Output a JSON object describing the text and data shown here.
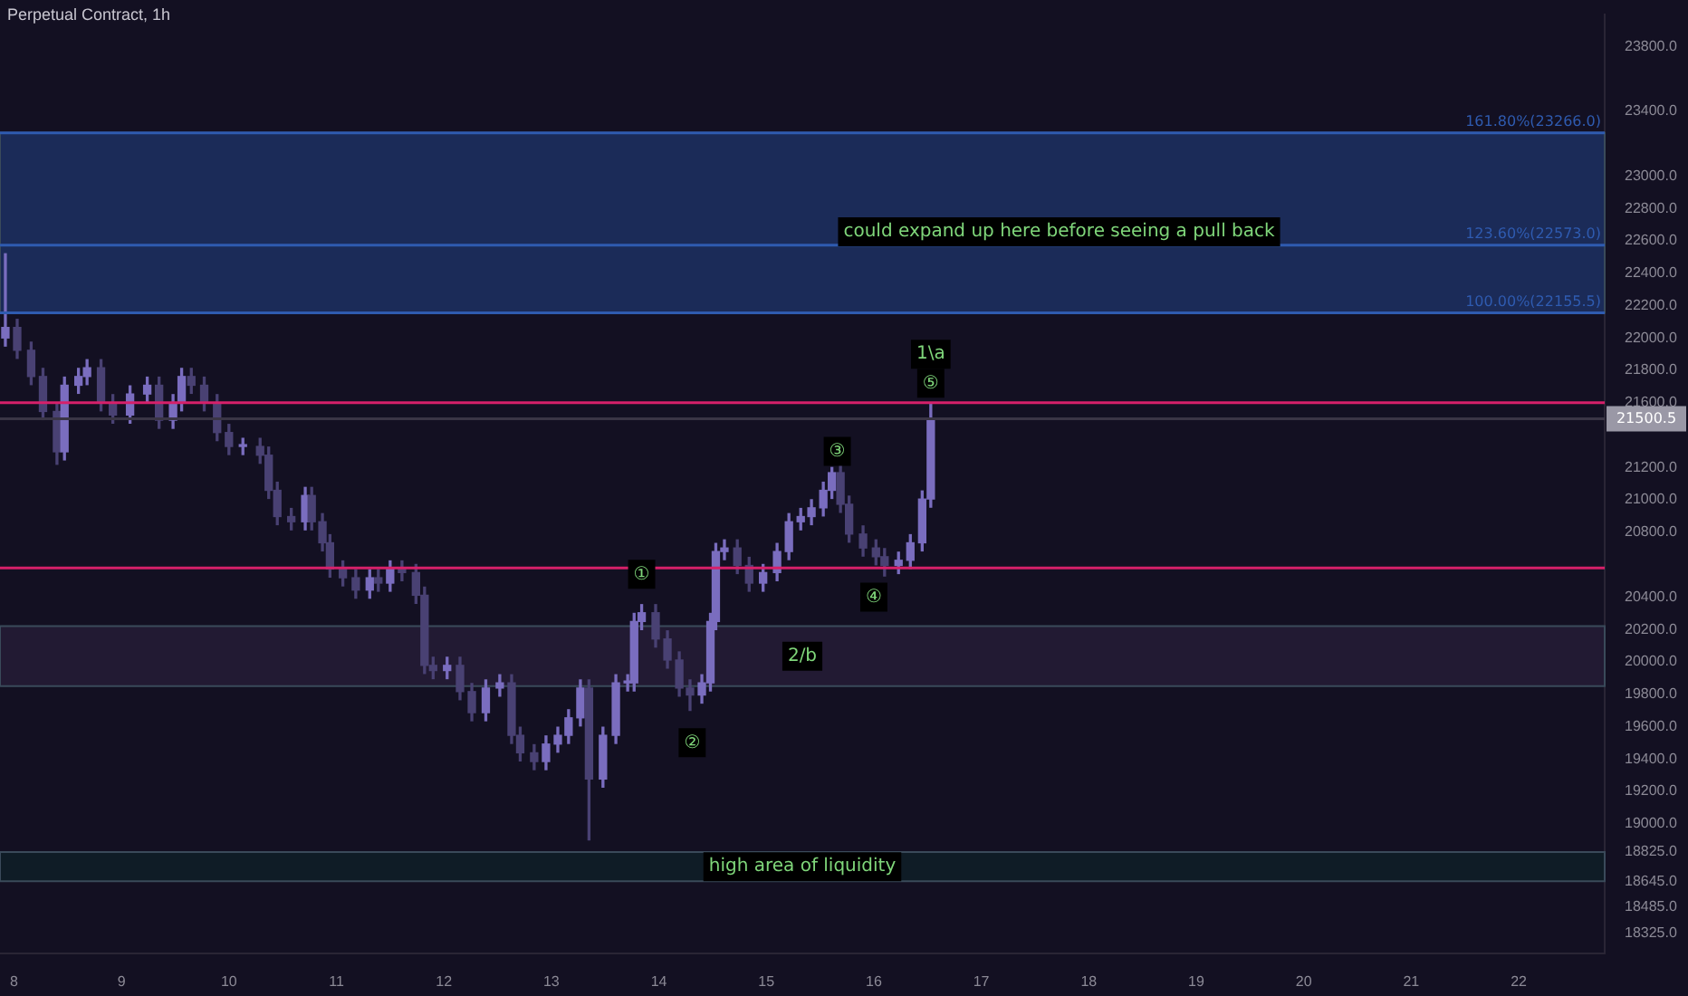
{
  "chart_data": {
    "type": "candlestick",
    "title": "Perpetual Contract, 1h",
    "colors": [
      "#7a6dbf",
      "#494173",
      "#494173",
      "#494173",
      "#494173",
      "#7a6dbf",
      "#7a6dbf",
      "#7a6dbf",
      "#494173",
      "#494173",
      "#7a6dbf",
      "#7a6dbf",
      "#494173",
      "#7a6dbf",
      "#7a6dbf",
      "#494173",
      "#494173",
      "#494173",
      "#494173",
      "#7a6dbf",
      "#494173",
      "#494173",
      "#494173",
      "#494173",
      "#7a6dbf",
      "#494173",
      "#494173",
      "#494173",
      "#494173",
      "#494173",
      "#7a6dbf",
      "#494173",
      "#7a6dbf",
      "#494173",
      "#494173",
      "#494173",
      "#494173",
      "#7a6dbf",
      "#494173",
      "#494173",
      "#7a6dbf",
      "#7a6dbf",
      "#494173",
      "#494173",
      "#494173",
      "#7a6dbf",
      "#7a6dbf",
      "#7a6dbf",
      "#7a6dbf",
      "#494173",
      "#7a6dbf",
      "#7a6dbf",
      "#7a6dbf",
      "#7a6dbf",
      "#7a6dbf",
      "#494173",
      "#494173",
      "#494173",
      "#494173",
      "#7a6dbf",
      "#7a6dbf",
      "#7a6dbf",
      "#7a6dbf",
      "#494173",
      "#494173",
      "#7a6dbf",
      "#7a6dbf",
      "#7a6dbf",
      "#7a6dbf",
      "#7a6dbf",
      "#7a6dbf",
      "#7a6dbf",
      "#494173",
      "#494173",
      "#494173",
      "#494173",
      "#494173",
      "#7a6dbf",
      "#7a6dbf",
      "#7a6dbf",
      "#7a6dbf"
    ],
    "x": [
      7.92,
      8.03,
      8.16,
      8.27,
      8.4,
      8.47,
      8.6,
      8.68,
      8.81,
      8.92,
      9.08,
      9.24,
      9.35,
      9.48,
      9.56,
      9.65,
      9.77,
      9.89,
      10.0,
      10.13,
      10.29,
      10.37,
      10.45,
      10.58,
      10.71,
      10.77,
      10.87,
      10.94,
      11.06,
      11.18,
      11.31,
      11.39,
      11.5,
      11.61,
      11.74,
      11.82,
      11.9,
      12.03,
      12.15,
      12.26,
      12.39,
      12.52,
      12.63,
      12.71,
      12.84,
      12.95,
      13.06,
      13.16,
      13.27,
      13.35,
      13.48,
      13.6,
      13.71,
      13.77,
      13.84,
      13.97,
      14.08,
      14.19,
      14.29,
      14.4,
      14.48,
      14.53,
      14.61,
      14.73,
      14.84,
      14.97,
      15.1,
      15.21,
      15.32,
      15.42,
      15.53,
      15.61,
      15.69,
      15.77,
      15.9,
      16.02,
      16.1,
      16.23,
      16.34,
      16.45,
      16.53
    ],
    "ohlc": [
      [
        22000,
        22520,
        21950,
        22065
      ],
      [
        22065,
        22115,
        21874,
        21924
      ],
      [
        21924,
        21974,
        21712,
        21762
      ],
      [
        21762,
        21812,
        21496,
        21546
      ],
      [
        21546,
        21596,
        21220,
        21297
      ],
      [
        21297,
        21758,
        21247,
        21708
      ],
      [
        21708,
        21812,
        21658,
        21762
      ],
      [
        21762,
        21866,
        21712,
        21816
      ],
      [
        21816,
        21866,
        21550,
        21600
      ],
      [
        21600,
        21650,
        21474,
        21524
      ],
      [
        21524,
        21704,
        21474,
        21654
      ],
      [
        21654,
        21758,
        21604,
        21708
      ],
      [
        21708,
        21758,
        21442,
        21492
      ],
      [
        21492,
        21650,
        21442,
        21600
      ],
      [
        21600,
        21812,
        21550,
        21762
      ],
      [
        21762,
        21812,
        21658,
        21708
      ],
      [
        21708,
        21758,
        21550,
        21600
      ],
      [
        21600,
        21650,
        21366,
        21416
      ],
      [
        21416,
        21466,
        21280,
        21330
      ],
      [
        21330,
        21380,
        21280,
        21330
      ],
      [
        21330,
        21380,
        21226,
        21276
      ],
      [
        21276,
        21326,
        21009,
        21059
      ],
      [
        21059,
        21109,
        20847,
        20897
      ],
      [
        20897,
        20947,
        20815,
        20865
      ],
      [
        20865,
        21077,
        20815,
        21027
      ],
      [
        21027,
        21077,
        20815,
        20865
      ],
      [
        20865,
        20915,
        20685,
        20735
      ],
      [
        20735,
        20785,
        20523,
        20573
      ],
      [
        20573,
        20623,
        20469,
        20519
      ],
      [
        20519,
        20569,
        20393,
        20443
      ],
      [
        20443,
        20569,
        20393,
        20519
      ],
      [
        20519,
        20569,
        20436,
        20486
      ],
      [
        20486,
        20623,
        20436,
        20573
      ],
      [
        20573,
        20623,
        20501,
        20551
      ],
      [
        20551,
        20601,
        20361,
        20411
      ],
      [
        20411,
        20461,
        19928,
        19978
      ],
      [
        19978,
        20028,
        19896,
        19946
      ],
      [
        19946,
        20028,
        19896,
        19978
      ],
      [
        19978,
        20028,
        19766,
        19816
      ],
      [
        19816,
        19866,
        19636,
        19686
      ],
      [
        19686,
        19888,
        19636,
        19838
      ],
      [
        19838,
        19920,
        19788,
        19870
      ],
      [
        19870,
        19920,
        19496,
        19546
      ],
      [
        19546,
        19596,
        19388,
        19438
      ],
      [
        19438,
        19488,
        19334,
        19384
      ],
      [
        19384,
        19542,
        19334,
        19492
      ],
      [
        19492,
        19596,
        19442,
        19546
      ],
      [
        19546,
        19704,
        19496,
        19654
      ],
      [
        19654,
        19888,
        19604,
        19838
      ],
      [
        19838,
        19888,
        18900,
        19276
      ],
      [
        19276,
        19596,
        19226,
        19546
      ],
      [
        19546,
        19920,
        19496,
        19870
      ],
      [
        19870,
        19920,
        19820,
        19870
      ],
      [
        19870,
        20299,
        19820,
        20249
      ],
      [
        20249,
        20353,
        20199,
        20303
      ],
      [
        20303,
        20353,
        20091,
        20141
      ],
      [
        20141,
        20191,
        19961,
        20011
      ],
      [
        20011,
        20061,
        19788,
        19838
      ],
      [
        19838,
        19888,
        19700,
        19795
      ],
      [
        19795,
        19920,
        19745,
        19870
      ],
      [
        19870,
        20299,
        19820,
        20249
      ],
      [
        20249,
        20731,
        20199,
        20681
      ],
      [
        20681,
        20753,
        20631,
        20703
      ],
      [
        20703,
        20753,
        20545,
        20595
      ],
      [
        20595,
        20645,
        20436,
        20486
      ],
      [
        20486,
        20601,
        20436,
        20551
      ],
      [
        20551,
        20731,
        20501,
        20681
      ],
      [
        20681,
        20915,
        20631,
        20865
      ],
      [
        20865,
        20947,
        20815,
        20897
      ],
      [
        20897,
        21001,
        20847,
        20951
      ],
      [
        20951,
        21109,
        20901,
        21059
      ],
      [
        21059,
        21200,
        21009,
        21168
      ],
      [
        21168,
        21218,
        20923,
        20973
      ],
      [
        20973,
        21023,
        20739,
        20789
      ],
      [
        20789,
        20839,
        20653,
        20703
      ],
      [
        20703,
        20753,
        20599,
        20649
      ],
      [
        20649,
        20699,
        20530,
        20595
      ],
      [
        20595,
        20677,
        20545,
        20627
      ],
      [
        20627,
        20785,
        20577,
        20735
      ],
      [
        20735,
        21055,
        20685,
        21005
      ],
      [
        21005,
        21590,
        20955,
        21500.5
      ]
    ],
    "xlim": [
      7.87,
      22.8
    ],
    "xticks": [
      8,
      9,
      10,
      11,
      12,
      13,
      14,
      15,
      16,
      17,
      18,
      19,
      20,
      21,
      22
    ],
    "ylim": [
      18200,
      24000
    ],
    "yticks": [
      {
        "value": 18325,
        "label": "18325.0"
      },
      {
        "value": 18485,
        "label": "18485.0"
      },
      {
        "value": 18645,
        "label": "18645.0"
      },
      {
        "value": 18825,
        "label": "18825.0"
      },
      {
        "value": 19000,
        "label": "19000.0"
      },
      {
        "value": 19200,
        "label": "19200.0"
      },
      {
        "value": 19400,
        "label": "19400.0"
      },
      {
        "value": 19600,
        "label": "19600.0"
      },
      {
        "value": 19800,
        "label": "19800.0"
      },
      {
        "value": 20000,
        "label": "20000.0"
      },
      {
        "value": 20200,
        "label": "20200.0"
      },
      {
        "value": 20400,
        "label": "20400.0"
      },
      {
        "value": 20800,
        "label": "20800.0"
      },
      {
        "value": 21000,
        "label": "21000.0"
      },
      {
        "value": 21200,
        "label": "21200.0"
      },
      {
        "value": 21600,
        "label": "21600.0"
      },
      {
        "value": 21800,
        "label": "21800.0"
      },
      {
        "value": 22000,
        "label": "22000.0"
      },
      {
        "value": 22200,
        "label": "22200.0"
      },
      {
        "value": 22400,
        "label": "22400.0"
      },
      {
        "value": 22600,
        "label": "22600.0"
      },
      {
        "value": 22800,
        "label": "22800.0"
      },
      {
        "value": 23000,
        "label": "23000.0"
      },
      {
        "value": 23400,
        "label": "23400.0"
      },
      {
        "value": 23800,
        "label": "23800.0"
      }
    ],
    "bands": [
      {
        "axis": "y",
        "from": 22155.5,
        "to": 23266,
        "color": "#1b2b58"
      },
      {
        "axis": "y",
        "from": 19850,
        "to": 20220,
        "color": "#221a33",
        "label": "2/b"
      },
      {
        "axis": "y",
        "from": 18645,
        "to": 18825,
        "color": "#0f1c26",
        "label": "high area of liquidity"
      }
    ],
    "ref_lines": [
      {
        "axis": "y",
        "value": 23266,
        "label": "161.80%(23266.0)",
        "color": "#2f5bb0"
      },
      {
        "axis": "y",
        "value": 22573,
        "label": "123.60%(22573.0)",
        "color": "#2f5bb0"
      },
      {
        "axis": "y",
        "value": 22155.5,
        "label": "100.00%(22155.5)",
        "color": "#2f5bb0"
      },
      {
        "axis": "y",
        "value": 21600,
        "color": "#d6206a"
      },
      {
        "axis": "y",
        "value": 20580,
        "color": "#d6206a"
      },
      {
        "axis": "y",
        "value": 21500.5,
        "label": "21500.5",
        "color": "#3a3545"
      }
    ],
    "annotations": [
      "could expand up here before seeing a pull back",
      {
        "text": "1\\a",
        "x": 16.53,
        "y": 21900
      },
      {
        "text": "①",
        "x": 13.84,
        "y": 20540
      },
      {
        "text": "②",
        "x": 14.31,
        "y": 19500
      },
      {
        "text": "③",
        "x": 15.66,
        "y": 21300
      },
      {
        "text": "④",
        "x": 16.0,
        "y": 20400
      },
      {
        "text": "⑤",
        "x": 16.53,
        "y": 21720
      }
    ]
  }
}
